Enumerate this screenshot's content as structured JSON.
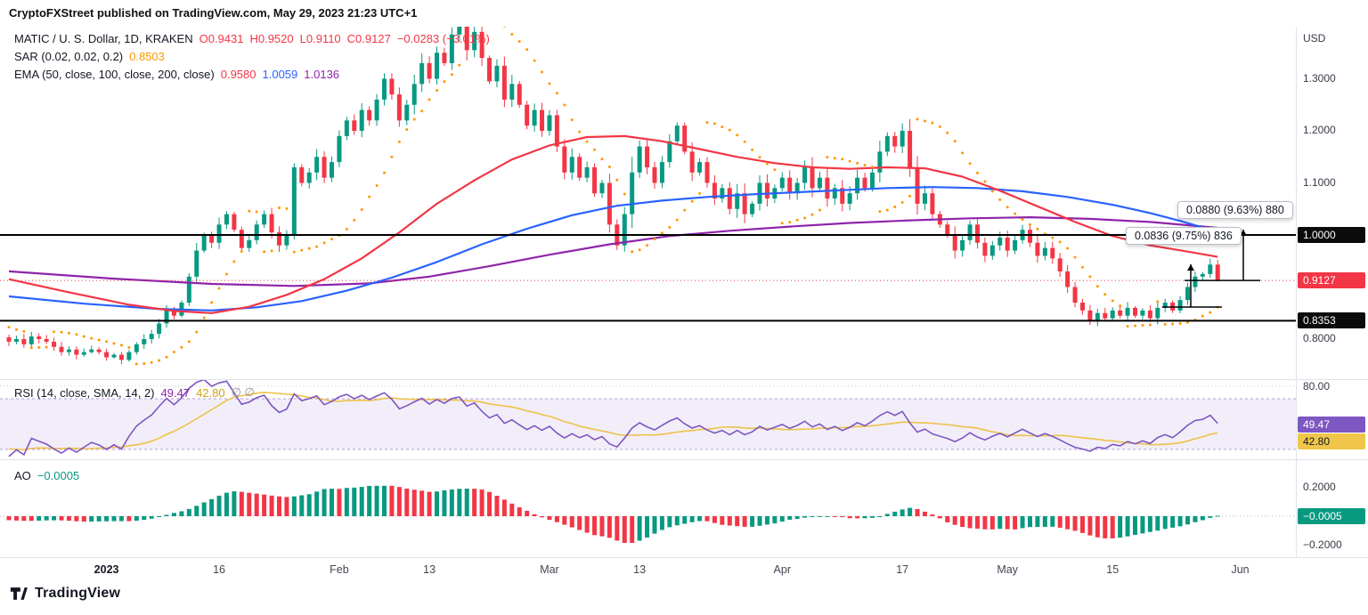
{
  "header": {
    "text": "CryptoFXStreet published on TradingView.com, May 29, 2023 21:23 UTC+1"
  },
  "footer": {
    "brand": "TradingView"
  },
  "legend": {
    "symbol": "MATIC / U. S. Dollar, 1D, KRAKEN",
    "o": "O0.9431",
    "h": "H0.9520",
    "l": "L0.9110",
    "c": "C0.9127",
    "change": "−0.0283 (−3.01%)",
    "sar_label": "SAR (0.02, 0.02, 0.2)",
    "sar_value": "0.8503",
    "ema_label": "EMA (50, close, 100, close, 200, close)",
    "ema50": "0.9580",
    "ema100": "1.0059",
    "ema200": "1.0136"
  },
  "rsi_legend": {
    "title": "RSI (14, close, SMA, 14, 2)",
    "v1": "49.47",
    "v2": "42.80",
    "extra": "∅  ∅"
  },
  "ao_legend": {
    "title": "AO",
    "value": "−0.0005"
  },
  "annotations": {
    "measure1": "0.0880 (9.63%) 880",
    "measure2": "0.0836 (9.75%) 836"
  },
  "axis": {
    "currency": "USD",
    "price_ticks": [
      {
        "label": "1.3000",
        "value": 1.3
      },
      {
        "label": "1.2000",
        "value": 1.2
      },
      {
        "label": "1.1000",
        "value": 1.1
      },
      {
        "label": "0.8000",
        "value": 0.8
      }
    ],
    "badges": [
      {
        "label": "1.0000",
        "value": 1.0,
        "bg": "#0b0b0b",
        "fg": "#ffffff"
      },
      {
        "label": "0.9127",
        "value": 0.9127,
        "bg": "#f23645",
        "fg": "#ffffff"
      },
      {
        "label": "0.8353",
        "value": 0.8353,
        "bg": "#0b0b0b",
        "fg": "#ffffff"
      }
    ],
    "rsi_tick": {
      "label": "80.00",
      "value": 80
    },
    "rsi_badges": [
      {
        "label": "49.47",
        "value": 49.47,
        "bg": "#7e57c2",
        "fg": "#ffffff"
      },
      {
        "label": "42.80",
        "value": 42.8,
        "bg": "#f0c64a",
        "fg": "#131722"
      }
    ],
    "ao_ticks": [
      {
        "label": "0.2000",
        "value": 0.2
      },
      {
        "label": "−0.2000",
        "value": -0.2
      }
    ],
    "ao_badge": {
      "label": "−0.0005",
      "value": -0.0005,
      "bg": "#089981",
      "fg": "#ffffff"
    },
    "time_labels": [
      {
        "label": "2023",
        "day": 13,
        "bold": true
      },
      {
        "label": "16",
        "day": 28
      },
      {
        "label": "Feb",
        "day": 44
      },
      {
        "label": "13",
        "day": 56
      },
      {
        "label": "Mar",
        "day": 72
      },
      {
        "label": "13",
        "day": 84
      },
      {
        "label": "Apr",
        "day": 103
      },
      {
        "label": "17",
        "day": 119
      },
      {
        "label": "May",
        "day": 133
      },
      {
        "label": "15",
        "day": 147
      },
      {
        "label": "Jun",
        "day": 164
      }
    ]
  },
  "chart_data": {
    "type": "candlestick",
    "symbol": "MATIC/USD",
    "interval": "1D",
    "exchange": "KRAKEN",
    "title": "MATIC / U. S. Dollar, 1D, KRAKEN",
    "start_date": "2022-12-19",
    "end_date": "2023-05-29",
    "ylim_price": [
      0.76,
      1.4
    ],
    "ylim_rsi": [
      20,
      80
    ],
    "ylim_ao": [
      -0.25,
      0.25
    ],
    "last_candle": {
      "open": 0.9431,
      "high": 0.952,
      "low": 0.911,
      "close": 0.9127,
      "change": -0.0283,
      "change_pct": -3.01
    },
    "levels": {
      "resistance": 1.0,
      "support": 0.8353,
      "last_price": 0.9127,
      "sar_last": 0.8503
    },
    "indicators": {
      "ema50_last": 0.958,
      "ema100_last": 1.0059,
      "ema200_last": 1.0136,
      "rsi_last": 49.47,
      "rsi_sma_last": 42.8,
      "ao_last": -0.0005
    },
    "closes": [
      0.795,
      0.8,
      0.79,
      0.805,
      0.8,
      0.795,
      0.785,
      0.775,
      0.78,
      0.77,
      0.775,
      0.78,
      0.775,
      0.765,
      0.77,
      0.76,
      0.775,
      0.79,
      0.8,
      0.81,
      0.83,
      0.855,
      0.845,
      0.87,
      0.92,
      0.97,
      1.0,
      0.985,
      1.02,
      1.04,
      1.01,
      0.975,
      0.99,
      1.02,
      1.04,
      1.005,
      0.98,
      1.0,
      1.13,
      1.1,
      1.12,
      1.15,
      1.11,
      1.14,
      1.19,
      1.22,
      1.2,
      1.24,
      1.22,
      1.26,
      1.3,
      1.27,
      1.22,
      1.25,
      1.29,
      1.33,
      1.3,
      1.35,
      1.33,
      1.385,
      1.405,
      1.355,
      1.39,
      1.34,
      1.295,
      1.325,
      1.26,
      1.29,
      1.25,
      1.21,
      1.24,
      1.2,
      1.23,
      1.17,
      1.12,
      1.15,
      1.11,
      1.13,
      1.08,
      1.1,
      1.02,
      0.98,
      1.04,
      1.12,
      1.17,
      1.13,
      1.1,
      1.14,
      1.18,
      1.21,
      1.16,
      1.12,
      1.14,
      1.1,
      1.07,
      1.09,
      1.05,
      1.08,
      1.04,
      1.06,
      1.1,
      1.07,
      1.09,
      1.11,
      1.08,
      1.1,
      1.13,
      1.09,
      1.11,
      1.07,
      1.09,
      1.06,
      1.08,
      1.11,
      1.09,
      1.12,
      1.16,
      1.19,
      1.17,
      1.2,
      1.13,
      1.06,
      1.08,
      1.04,
      1.02,
      1.0,
      0.97,
      0.99,
      1.02,
      0.985,
      0.96,
      0.98,
      0.995,
      0.97,
      0.99,
      1.01,
      0.985,
      0.96,
      0.975,
      0.955,
      0.93,
      0.9,
      0.87,
      0.855,
      0.835,
      0.85,
      0.84,
      0.855,
      0.845,
      0.86,
      0.845,
      0.855,
      0.84,
      0.86,
      0.87,
      0.855,
      0.875,
      0.9,
      0.92,
      0.925,
      0.9431,
      0.9127
    ],
    "ema": {
      "ema50_points": [
        [
          0,
          0.915
        ],
        [
          8,
          0.89
        ],
        [
          16,
          0.866
        ],
        [
          22,
          0.854
        ],
        [
          27,
          0.85
        ],
        [
          32,
          0.862
        ],
        [
          37,
          0.885
        ],
        [
          42,
          0.915
        ],
        [
          47,
          0.955
        ],
        [
          52,
          1.005
        ],
        [
          57,
          1.06
        ],
        [
          62,
          1.105
        ],
        [
          67,
          1.145
        ],
        [
          72,
          1.172
        ],
        [
          77,
          1.188
        ],
        [
          82,
          1.19
        ],
        [
          87,
          1.18
        ],
        [
          92,
          1.165
        ],
        [
          97,
          1.15
        ],
        [
          102,
          1.138
        ],
        [
          107,
          1.13
        ],
        [
          112,
          1.127
        ],
        [
          117,
          1.13
        ],
        [
          122,
          1.128
        ],
        [
          127,
          1.112
        ],
        [
          132,
          1.085
        ],
        [
          137,
          1.055
        ],
        [
          142,
          1.025
        ],
        [
          147,
          0.998
        ],
        [
          152,
          0.98
        ],
        [
          157,
          0.968
        ],
        [
          161,
          0.958
        ]
      ],
      "ema100_points": [
        [
          0,
          0.882
        ],
        [
          10,
          0.868
        ],
        [
          20,
          0.858
        ],
        [
          27,
          0.855
        ],
        [
          33,
          0.861
        ],
        [
          39,
          0.873
        ],
        [
          45,
          0.893
        ],
        [
          51,
          0.918
        ],
        [
          57,
          0.948
        ],
        [
          63,
          0.982
        ],
        [
          69,
          1.012
        ],
        [
          75,
          1.038
        ],
        [
          81,
          1.056
        ],
        [
          87,
          1.066
        ],
        [
          93,
          1.073
        ],
        [
          99,
          1.078
        ],
        [
          105,
          1.082
        ],
        [
          111,
          1.086
        ],
        [
          117,
          1.09
        ],
        [
          123,
          1.092
        ],
        [
          129,
          1.09
        ],
        [
          135,
          1.084
        ],
        [
          141,
          1.073
        ],
        [
          147,
          1.058
        ],
        [
          152,
          1.042
        ],
        [
          156,
          1.027
        ],
        [
          161,
          1.006
        ]
      ],
      "ema200_points": [
        [
          0,
          0.93
        ],
        [
          14,
          0.916
        ],
        [
          27,
          0.906
        ],
        [
          38,
          0.902
        ],
        [
          48,
          0.907
        ],
        [
          56,
          0.92
        ],
        [
          64,
          0.94
        ],
        [
          72,
          0.962
        ],
        [
          80,
          0.982
        ],
        [
          88,
          0.998
        ],
        [
          96,
          1.008
        ],
        [
          104,
          1.016
        ],
        [
          112,
          1.023
        ],
        [
          120,
          1.028
        ],
        [
          128,
          1.032
        ],
        [
          136,
          1.034
        ],
        [
          144,
          1.031
        ],
        [
          152,
          1.025
        ],
        [
          161,
          1.0136
        ]
      ]
    },
    "rsi": {
      "period": 14,
      "sma_period": 14,
      "upper_band": 70,
      "lower_band": 30
    },
    "sar": {
      "start": 0.02,
      "step": 0.02,
      "max": 0.2
    },
    "colors": {
      "up": "#089981",
      "down": "#f23645",
      "ema50": "#f23645",
      "ema100": "#2962ff",
      "ema200": "#8e24aa",
      "sar": "#ff9800",
      "rsi": "#7e57c2",
      "rsi_sma": "#edc24a",
      "level": "#000000",
      "band_fill": "#7e57c2"
    }
  }
}
